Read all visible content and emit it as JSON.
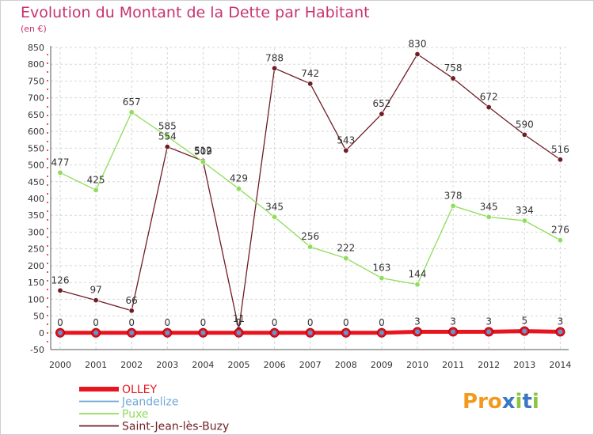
{
  "chart_data": {
    "type": "line",
    "title": "Evolution du Montant de la Dette par Habitant",
    "subtitle": "(en €)",
    "x": [
      "2000",
      "2001",
      "2002",
      "2003",
      "2004",
      "2005",
      "2006",
      "2007",
      "2008",
      "2009",
      "2010",
      "2011",
      "2012",
      "2013",
      "2014"
    ],
    "ylim": [
      -50,
      850
    ],
    "yticks": [
      -50,
      0,
      50,
      100,
      150,
      200,
      250,
      300,
      350,
      400,
      450,
      500,
      550,
      600,
      650,
      700,
      750,
      800,
      850
    ],
    "grid": true,
    "legend_position": "bottom-left",
    "series": [
      {
        "name": "Saint-Jean-lès-Buzy",
        "color": "#6e1d25",
        "values": [
          126,
          97,
          66,
          554,
          512,
          11,
          788,
          742,
          543,
          652,
          830,
          758,
          672,
          590,
          516
        ],
        "labels": [
          "126",
          "97",
          "66",
          "554",
          "512",
          "11",
          "788",
          "742",
          "543",
          "652",
          "830",
          "758",
          "672",
          "590",
          "516"
        ]
      },
      {
        "name": "Puxe",
        "color": "#8fdd5a",
        "values": [
          477,
          425,
          657,
          585,
          509,
          429,
          345,
          256,
          222,
          163,
          144,
          378,
          345,
          334,
          276
        ],
        "labels": [
          "477",
          "425",
          "657",
          "585",
          "509",
          "429",
          "345",
          "256",
          "222",
          "163",
          "144",
          "378",
          "345",
          "334",
          "276"
        ]
      },
      {
        "name": "Jeandelize",
        "color": "#6fa8d6",
        "values": [
          0,
          0,
          0,
          0,
          0,
          0,
          0,
          0,
          0,
          0,
          0,
          0,
          0,
          0,
          0
        ],
        "labels": []
      },
      {
        "name": "OLLEY",
        "color": "#e8141e",
        "values": [
          0,
          0,
          0,
          0,
          0,
          0,
          0,
          0,
          0,
          0,
          3,
          3,
          3,
          5,
          3
        ],
        "labels": [
          "0",
          "0",
          "0",
          "0",
          "0",
          "0",
          "0",
          "0",
          "0",
          "0",
          "3",
          "3",
          "3",
          "5",
          "3"
        ]
      }
    ],
    "legend": [
      {
        "name": "OLLEY",
        "color": "#e8141e"
      },
      {
        "name": "Jeandelize",
        "color": "#6fa8d6"
      },
      {
        "name": "Puxe",
        "color": "#8fdd5a"
      },
      {
        "name": "Saint-Jean-lès-Buzy",
        "color": "#6e1d25"
      }
    ]
  },
  "branding": {
    "logo_text": "Proxiti"
  }
}
